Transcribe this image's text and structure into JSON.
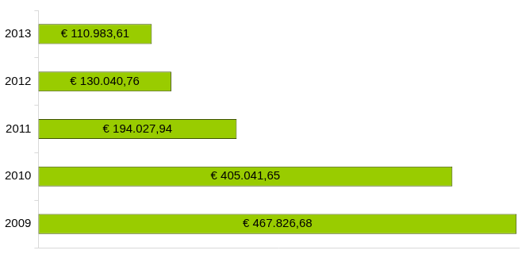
{
  "chart_data": {
    "type": "bar",
    "orientation": "horizontal",
    "categories": [
      "2013",
      "2012",
      "2011",
      "2010",
      "2009"
    ],
    "values": [
      110983.61,
      130040.76,
      194027.94,
      405041.65,
      467826.68
    ],
    "value_labels": [
      "€ 110.983,61",
      "€ 130.040,76",
      "€ 194.027,94",
      "€ 405.041,65",
      "€ 467.826,68"
    ],
    "data_labels": true,
    "color": "#99cc00",
    "xlim": [
      0,
      470000
    ],
    "grid": false,
    "tick_labels": "y"
  }
}
